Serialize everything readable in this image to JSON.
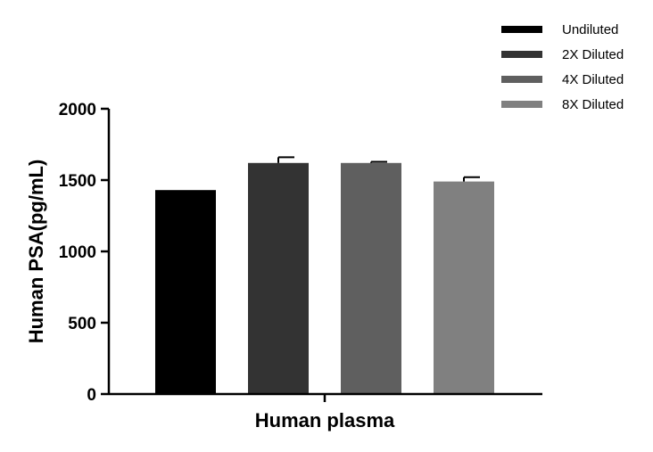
{
  "chart_data": {
    "type": "bar",
    "categories": [
      "Human plasma"
    ],
    "xlabel": "Human plasma",
    "ylabel": "Human PSA(pg/mL)",
    "ylim": [
      0,
      2000
    ],
    "yticks": [
      0,
      500,
      1000,
      1500,
      2000
    ],
    "grid": false,
    "legend_position": "top-right",
    "series": [
      {
        "name": "Undiluted",
        "values": [
          1430
        ],
        "error": [
          0
        ],
        "color": "#000000"
      },
      {
        "name": "2X Diluted",
        "values": [
          1620
        ],
        "error": [
          40
        ],
        "color": "#333333"
      },
      {
        "name": "4X Diluted",
        "values": [
          1620
        ],
        "error": [
          8
        ],
        "color": "#5f5f5f"
      },
      {
        "name": "8X Diluted",
        "values": [
          1490
        ],
        "error": [
          30
        ],
        "color": "#808080"
      }
    ]
  }
}
